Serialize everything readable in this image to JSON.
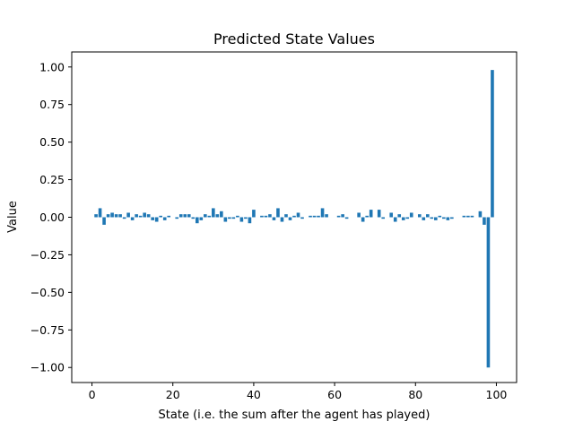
{
  "chart_data": {
    "type": "bar",
    "title": "Predicted State Values",
    "xlabel": "State (i.e. the sum after the agent has played)",
    "ylabel": "Value",
    "xlim": [
      -5,
      105
    ],
    "ylim": [
      -1.1,
      1.1
    ],
    "xticks": [
      0,
      20,
      40,
      60,
      80,
      100
    ],
    "yticks": [
      -1.0,
      -0.75,
      -0.5,
      -0.25,
      0.0,
      0.25,
      0.5,
      0.75,
      1.0
    ],
    "ytick_labels": [
      "−1.00",
      "−0.75",
      "−0.50",
      "−0.25",
      "0.00",
      "0.25",
      "0.50",
      "0.75",
      "1.00"
    ],
    "xtick_labels": [
      "0",
      "20",
      "40",
      "60",
      "80",
      "100"
    ],
    "grid": false,
    "bar_color": "#1f77b4",
    "x": [
      1,
      2,
      3,
      4,
      5,
      6,
      7,
      8,
      9,
      10,
      11,
      12,
      13,
      14,
      15,
      16,
      17,
      18,
      19,
      20,
      21,
      22,
      23,
      24,
      25,
      26,
      27,
      28,
      29,
      30,
      31,
      32,
      33,
      34,
      35,
      36,
      37,
      38,
      39,
      40,
      41,
      42,
      43,
      44,
      45,
      46,
      47,
      48,
      49,
      50,
      51,
      52,
      53,
      54,
      55,
      56,
      57,
      58,
      59,
      60,
      61,
      62,
      63,
      64,
      65,
      66,
      67,
      68,
      69,
      70,
      71,
      72,
      73,
      74,
      75,
      76,
      77,
      78,
      79,
      80,
      81,
      82,
      83,
      84,
      85,
      86,
      87,
      88,
      89,
      90,
      91,
      92,
      93,
      94,
      95,
      96,
      97,
      98,
      99,
      100
    ],
    "values": [
      0.02,
      0.06,
      -0.05,
      0.02,
      0.03,
      0.02,
      0.02,
      -0.01,
      0.03,
      -0.02,
      0.02,
      0.01,
      0.03,
      0.02,
      -0.02,
      -0.03,
      0.01,
      -0.02,
      0.01,
      0.0,
      -0.01,
      0.02,
      0.02,
      0.02,
      -0.01,
      -0.04,
      -0.02,
      0.02,
      0.01,
      0.06,
      0.02,
      0.04,
      -0.03,
      -0.01,
      -0.01,
      0.01,
      -0.03,
      -0.01,
      -0.04,
      0.05,
      0.0,
      0.01,
      0.01,
      0.02,
      -0.02,
      0.06,
      -0.03,
      0.02,
      -0.02,
      0.01,
      0.03,
      -0.01,
      0.0,
      0.01,
      0.01,
      0.01,
      0.06,
      0.02,
      0.0,
      0.0,
      0.01,
      0.02,
      -0.01,
      0.0,
      0.0,
      0.03,
      -0.03,
      0.01,
      0.05,
      0.0,
      0.05,
      -0.01,
      0.0,
      0.03,
      -0.03,
      0.02,
      -0.02,
      -0.01,
      0.03,
      0.0,
      0.02,
      -0.02,
      0.02,
      -0.01,
      -0.02,
      0.01,
      -0.01,
      -0.02,
      -0.01,
      0.0,
      0.0,
      0.01,
      0.01,
      0.01,
      0.0,
      0.04,
      -0.05,
      -1.0,
      0.98,
      0.0
    ]
  }
}
